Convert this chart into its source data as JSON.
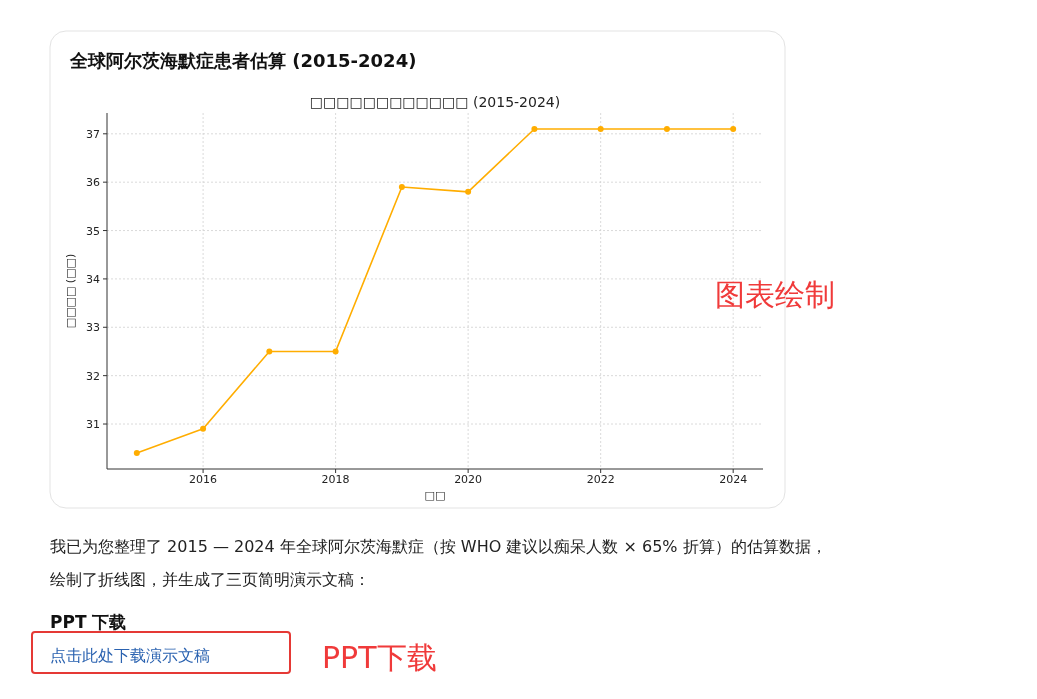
{
  "chart_data": {
    "type": "line",
    "title": "全球阿尔茨海默症患者估算 (2015-2024)",
    "subtitle": "□□□□□□□□□□□□ (2015-2024)",
    "xlabel": "□□",
    "ylabel": "□□□□ (□□)",
    "x": [
      2015,
      2016,
      2017,
      2018,
      2019,
      2020,
      2021,
      2022,
      2023,
      2024
    ],
    "values": [
      30.4,
      30.9,
      32.5,
      32.5,
      35.9,
      35.8,
      37.1,
      37.1,
      37.1,
      37.1
    ],
    "color": "#ffad00",
    "marker": "circle",
    "line_style": "solid",
    "grid": true,
    "xlim": [
      2014.55,
      2024.45
    ],
    "xticks": [
      2016,
      2018,
      2020,
      2022,
      2024
    ],
    "ylim": [
      30.07,
      37.43
    ],
    "yticks": [
      31,
      32,
      33,
      34,
      35,
      36,
      37
    ],
    "annotations": [
      "我已为您整理了 2015 — 2024 年全球阿尔茨海默症（按 WHO 建议以痴呆人数 × 65% 折算）的估算数据，",
      "绘制了折线图，并生成了三页简明演示文稿：",
      "PPT 下载",
      "点击此处下载演示文稿",
      "图表绘制",
      "PPT下载"
    ]
  }
}
